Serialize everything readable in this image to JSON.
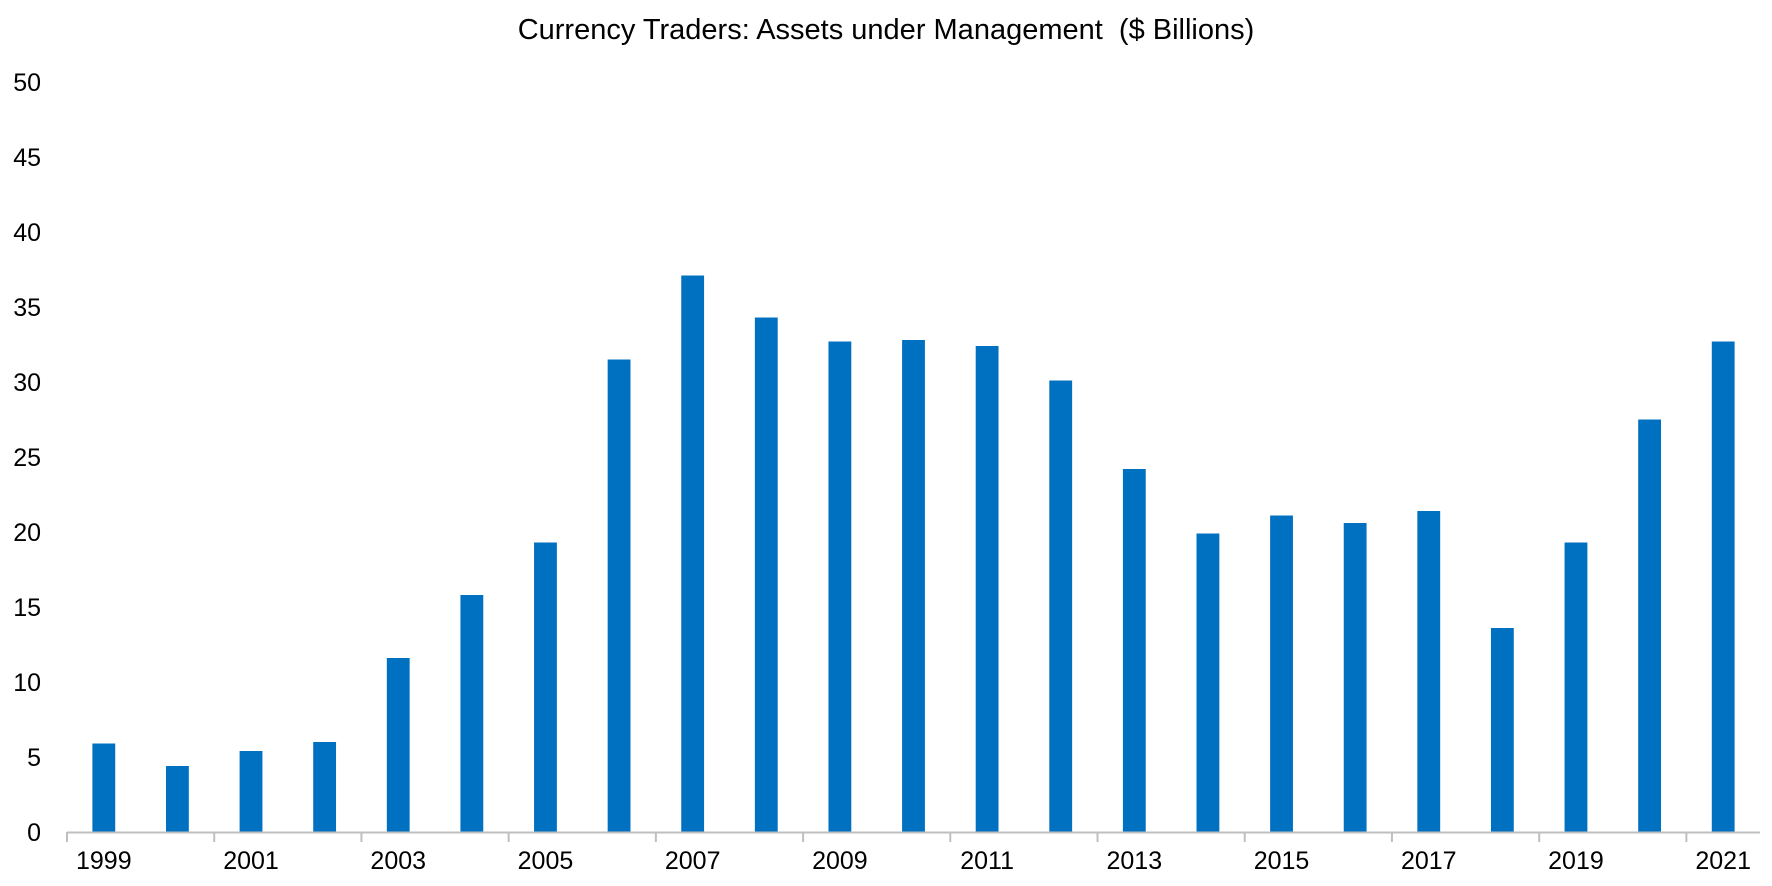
{
  "chart_data": {
    "type": "bar",
    "title": "Currency Traders: Assets under Management  ($ Billions)",
    "xlabel": "",
    "ylabel": "",
    "categories": [
      "1999",
      "2000",
      "2001",
      "2002",
      "2003",
      "2004",
      "2005",
      "2006",
      "2007",
      "2008",
      "2009",
      "2010",
      "2011",
      "2012",
      "2013",
      "2014",
      "2015",
      "2016",
      "2017",
      "2018",
      "2019",
      "2020",
      "2021"
    ],
    "x_tick_labels": [
      "1999",
      "2001",
      "2003",
      "2005",
      "2007",
      "2009",
      "2011",
      "2013",
      "2015",
      "2017",
      "2019",
      "2021"
    ],
    "values": [
      5.9,
      4.4,
      5.4,
      6.0,
      11.6,
      15.8,
      19.3,
      31.5,
      37.1,
      34.3,
      32.7,
      32.8,
      32.4,
      30.1,
      24.2,
      19.9,
      21.1,
      20.6,
      21.4,
      13.6,
      19.3,
      27.5,
      32.7
    ],
    "ylim": [
      0,
      50
    ],
    "y_ticks": [
      0,
      5,
      10,
      15,
      20,
      25,
      30,
      35,
      40,
      45,
      50
    ],
    "grid": false,
    "legend": "none",
    "colors": {
      "bar": "#0070C0",
      "axis": "#BFBFBF",
      "text": "#000000"
    }
  }
}
